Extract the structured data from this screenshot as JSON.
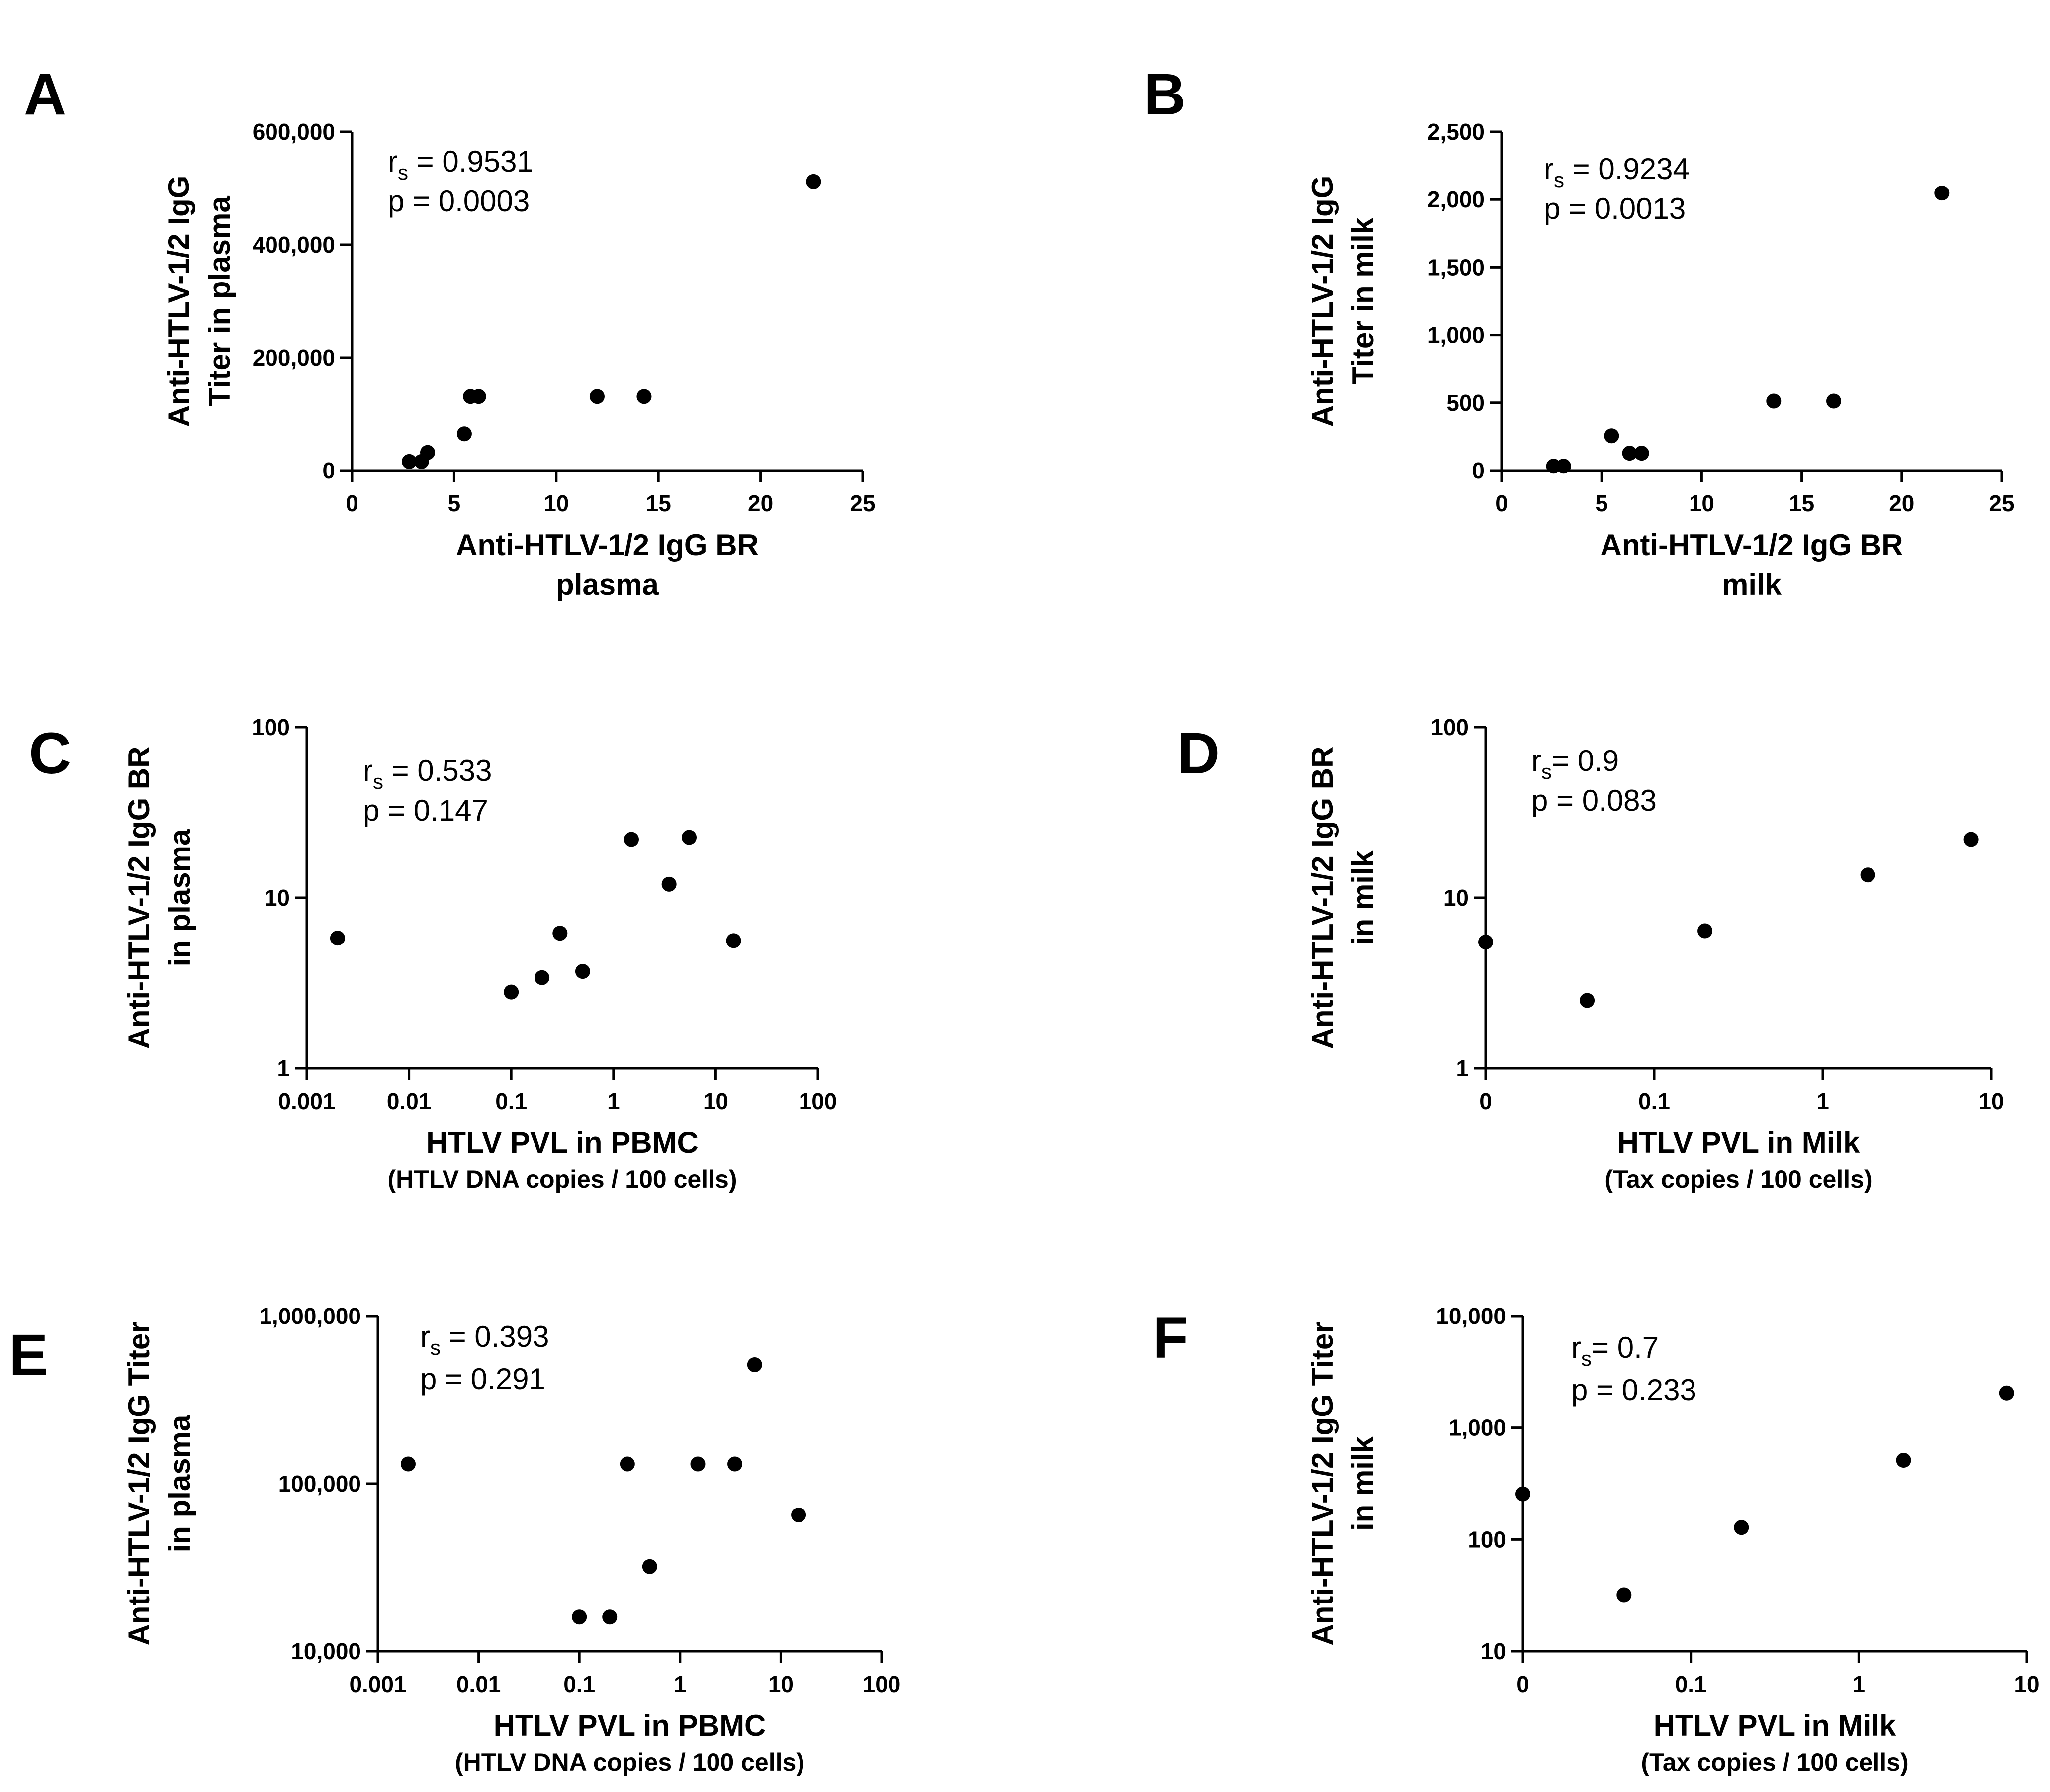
{
  "chart_data": [
    {
      "id": "A",
      "panel_label": "A",
      "type": "scatter",
      "x_scale": "linear",
      "y_scale": "linear",
      "xlim": [
        0,
        25
      ],
      "ylim": [
        0,
        600000
      ],
      "x_ticks": [
        0,
        5,
        10,
        15,
        20,
        25
      ],
      "x_tick_labels": [
        "0",
        "5",
        "10",
        "15",
        "20",
        "25"
      ],
      "y_ticks": [
        0,
        200000,
        400000,
        600000
      ],
      "y_tick_labels": [
        "0",
        "200,000",
        "400,000",
        "600,000"
      ],
      "xlabel": [
        "Anti-HTLV-1/2 IgG BR",
        "plasma"
      ],
      "xlabel_sub": "",
      "ylabel": [
        "Anti-HTLV-1/2 IgG",
        "Titer in plasma"
      ],
      "stat": {
        "r_main": "r",
        "r_sub": "s",
        "r_value": " = 0.9531",
        "p_text": "p = 0.0003"
      },
      "points": [
        {
          "x": 2.8,
          "y": 16000
        },
        {
          "x": 3.4,
          "y": 16000
        },
        {
          "x": 3.7,
          "y": 32000
        },
        {
          "x": 5.5,
          "y": 65000
        },
        {
          "x": 5.8,
          "y": 131000
        },
        {
          "x": 6.2,
          "y": 131000
        },
        {
          "x": 12.0,
          "y": 131000
        },
        {
          "x": 14.3,
          "y": 131000
        },
        {
          "x": 22.6,
          "y": 512000
        }
      ]
    },
    {
      "id": "B",
      "panel_label": "B",
      "type": "scatter",
      "x_scale": "linear",
      "y_scale": "linear",
      "xlim": [
        0,
        25
      ],
      "ylim": [
        0,
        2500
      ],
      "x_ticks": [
        0,
        5,
        10,
        15,
        20,
        25
      ],
      "x_tick_labels": [
        "0",
        "5",
        "10",
        "15",
        "20",
        "25"
      ],
      "y_ticks": [
        0,
        500,
        1000,
        1500,
        2000,
        2500
      ],
      "y_tick_labels": [
        "0",
        "500",
        "1,000",
        "1,500",
        "2,000",
        "2,500"
      ],
      "xlabel": [
        "Anti-HTLV-1/2 IgG BR",
        "milk"
      ],
      "xlabel_sub": "",
      "ylabel": [
        "Anti-HTLV-1/2 IgG",
        "Titer in milk"
      ],
      "stat": {
        "r_main": "r",
        "r_sub": "s",
        "r_value": " = 0.9234",
        "p_text": "p = 0.0013"
      },
      "points": [
        {
          "x": 2.6,
          "y": 32
        },
        {
          "x": 3.1,
          "y": 32
        },
        {
          "x": 5.5,
          "y": 256
        },
        {
          "x": 6.4,
          "y": 128
        },
        {
          "x": 7.0,
          "y": 128
        },
        {
          "x": 13.6,
          "y": 512
        },
        {
          "x": 16.6,
          "y": 512
        },
        {
          "x": 22.0,
          "y": 2048
        }
      ]
    },
    {
      "id": "C",
      "panel_label": "C",
      "type": "scatter",
      "x_scale": "log",
      "y_scale": "log",
      "xlim": [
        0.001,
        100
      ],
      "ylim": [
        1,
        100
      ],
      "x_ticks": [
        0.001,
        0.01,
        0.1,
        1,
        10,
        100
      ],
      "x_tick_labels": [
        "0.001",
        "0.01",
        "0.1",
        "1",
        "10",
        "100"
      ],
      "y_ticks": [
        1,
        10,
        100
      ],
      "y_tick_labels": [
        "1",
        "10",
        "100"
      ],
      "xlabel": [
        "HTLV PVL in PBMC"
      ],
      "xlabel_sub": "(HTLV DNA copies / 100 cells)",
      "ylabel": [
        "Anti-HTLV-1/2 IgG BR",
        "in plasma"
      ],
      "stat": {
        "r_main": "r",
        "r_sub": "s",
        "r_value": " = 0.533",
        "p_text": "p = 0.147"
      },
      "points": [
        {
          "x": 0.002,
          "y": 5.8
        },
        {
          "x": 0.1,
          "y": 2.8
        },
        {
          "x": 0.2,
          "y": 3.4
        },
        {
          "x": 0.3,
          "y": 6.2
        },
        {
          "x": 0.5,
          "y": 3.7
        },
        {
          "x": 1.5,
          "y": 22.0
        },
        {
          "x": 3.5,
          "y": 12.0
        },
        {
          "x": 5.5,
          "y": 22.6
        },
        {
          "x": 15.0,
          "y": 5.6
        }
      ]
    },
    {
      "id": "D",
      "panel_label": "D",
      "type": "scatter",
      "x_scale": "log",
      "y_scale": "log",
      "xlim": [
        0.01,
        10
      ],
      "ylim": [
        1,
        100
      ],
      "x_ticks": [
        0.01,
        0.1,
        1,
        10
      ],
      "x_tick_labels": [
        "0",
        "0.1",
        "1",
        "10"
      ],
      "y_ticks": [
        1,
        10,
        100
      ],
      "y_tick_labels": [
        "1",
        "10",
        "100"
      ],
      "xlabel": [
        "HTLV PVL in Milk"
      ],
      "xlabel_sub": "(Tax copies / 100 cells)",
      "ylabel": [
        "Anti-HTLV-1/2 IgG BR",
        "in milk"
      ],
      "stat": {
        "r_main": "r",
        "r_sub": "s",
        "r_value": "= 0.9",
        "p_text": "p = 0.083"
      },
      "points": [
        {
          "x": 0.01,
          "y": 5.5
        },
        {
          "x": 0.04,
          "y": 2.5
        },
        {
          "x": 0.2,
          "y": 6.4
        },
        {
          "x": 1.85,
          "y": 13.6
        },
        {
          "x": 7.6,
          "y": 22.0
        }
      ]
    },
    {
      "id": "E",
      "panel_label": "E",
      "type": "scatter",
      "x_scale": "log",
      "y_scale": "log",
      "xlim": [
        0.001,
        100
      ],
      "ylim": [
        10000,
        1000000
      ],
      "x_ticks": [
        0.001,
        0.01,
        0.1,
        1,
        10,
        100
      ],
      "x_tick_labels": [
        "0.001",
        "0.01",
        "0.1",
        "1",
        "10",
        "100"
      ],
      "y_ticks": [
        10000,
        100000,
        1000000
      ],
      "y_tick_labels": [
        "10,000",
        "100,000",
        "1,000,000"
      ],
      "xlabel": [
        "HTLV PVL in PBMC"
      ],
      "xlabel_sub": "(HTLV DNA copies / 100 cells)",
      "ylabel": [
        "Anti-HTLV-1/2 IgG Titer",
        "in plasma"
      ],
      "stat": {
        "r_main": "r",
        "r_sub": "s",
        "r_value": " = 0.393",
        "p_text": "p = 0.291"
      },
      "points": [
        {
          "x": 0.002,
          "y": 131000
        },
        {
          "x": 0.1,
          "y": 16000
        },
        {
          "x": 0.2,
          "y": 16000
        },
        {
          "x": 0.3,
          "y": 131000
        },
        {
          "x": 0.5,
          "y": 32000
        },
        {
          "x": 1.5,
          "y": 131000
        },
        {
          "x": 3.5,
          "y": 131000
        },
        {
          "x": 5.5,
          "y": 512000
        },
        {
          "x": 15.0,
          "y": 65000
        }
      ]
    },
    {
      "id": "F",
      "panel_label": "F",
      "type": "scatter",
      "x_scale": "log",
      "y_scale": "log",
      "xlim": [
        0.01,
        10
      ],
      "ylim": [
        10,
        10000
      ],
      "x_ticks": [
        0.01,
        0.1,
        1,
        10
      ],
      "x_tick_labels": [
        "0",
        "0.1",
        "1",
        "10"
      ],
      "y_ticks": [
        10,
        100,
        1000,
        10000
      ],
      "y_tick_labels": [
        "10",
        "100",
        "1,000",
        "10,000"
      ],
      "xlabel": [
        "HTLV PVL in Milk"
      ],
      "xlabel_sub": "(Tax copies / 100 cells)",
      "ylabel": [
        "Anti-HTLV-1/2 IgG Titer",
        "in milk"
      ],
      "stat": {
        "r_main": "r",
        "r_sub": "s",
        "r_value": "= 0.7",
        "p_text": "p = 0.233"
      },
      "points": [
        {
          "x": 0.01,
          "y": 256
        },
        {
          "x": 0.04,
          "y": 32
        },
        {
          "x": 0.2,
          "y": 128
        },
        {
          "x": 1.85,
          "y": 512
        },
        {
          "x": 7.6,
          "y": 2048
        }
      ]
    }
  ]
}
